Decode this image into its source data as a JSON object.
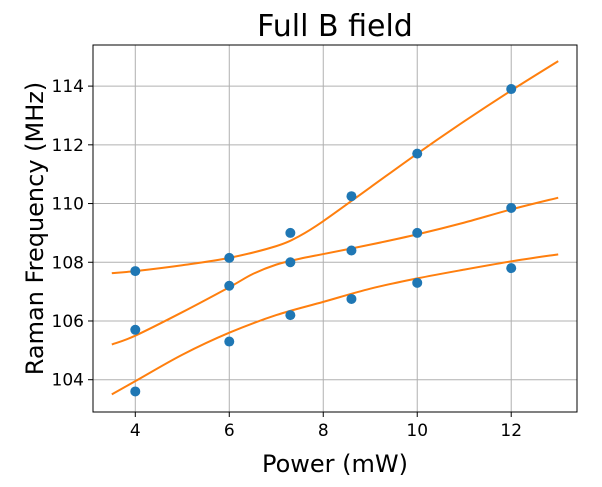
{
  "chart_data": {
    "type": "scatter",
    "title": "Full B field",
    "xlabel": "Power (mW)",
    "ylabel": "Raman Frequency (MHz)",
    "xlim": [
      3.1,
      13.4
    ],
    "ylim": [
      102.9,
      115.4
    ],
    "xticks": [
      4,
      6,
      8,
      10,
      12
    ],
    "yticks": [
      104,
      106,
      108,
      110,
      112,
      114
    ],
    "grid": true,
    "legend": "none",
    "colors": {
      "points": "#1f77b4",
      "fits": "#ff7f0e",
      "grid": "#b0b0b0"
    },
    "series": [
      {
        "kind": "points",
        "x": [
          4,
          4,
          4,
          6,
          6,
          6,
          7.3,
          7.3,
          7.3,
          8.6,
          8.6,
          8.6,
          10,
          10,
          10,
          12,
          12,
          12
        ],
        "y": [
          103.6,
          105.7,
          107.7,
          105.3,
          107.2,
          108.15,
          106.2,
          108.0,
          109.0,
          106.75,
          108.4,
          110.25,
          107.3,
          109.0,
          111.7,
          107.8,
          109.85,
          113.9
        ]
      },
      {
        "kind": "fit",
        "x": [
          3.5,
          4,
          5,
          6,
          7,
          7.5,
          8,
          9,
          10,
          11,
          12,
          13
        ],
        "y": [
          107.63,
          107.7,
          107.9,
          108.15,
          108.55,
          108.9,
          109.4,
          110.55,
          111.7,
          112.8,
          113.85,
          114.85
        ]
      },
      {
        "kind": "fit",
        "x": [
          3.5,
          4,
          5,
          6,
          6.5,
          7,
          7.5,
          8,
          9,
          10,
          11,
          12,
          13
        ],
        "y": [
          105.2,
          105.5,
          106.3,
          107.15,
          107.6,
          107.92,
          108.12,
          108.28,
          108.6,
          108.95,
          109.35,
          109.8,
          110.2
        ]
      },
      {
        "kind": "fit",
        "x": [
          3.5,
          4,
          5,
          6,
          7,
          8,
          9,
          10,
          11,
          12,
          13
        ],
        "y": [
          103.5,
          103.95,
          104.85,
          105.6,
          106.2,
          106.65,
          107.1,
          107.45,
          107.75,
          108.03,
          108.27
        ]
      }
    ]
  }
}
